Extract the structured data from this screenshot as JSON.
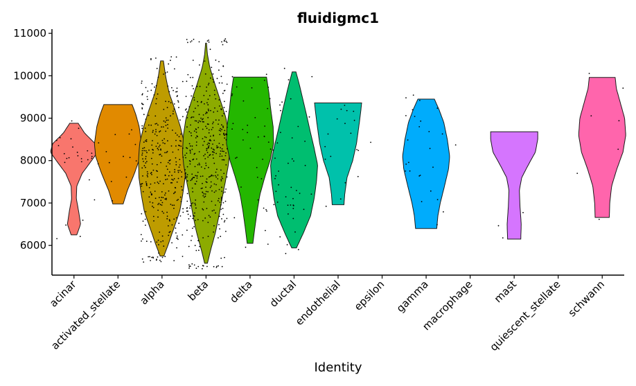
{
  "chart_data": {
    "type": "violin",
    "title": "fluidigmc1",
    "xlabel": "Identity",
    "ylabel": "",
    "ylim": [
      5300,
      11100
    ],
    "yticks": [
      6000,
      7000,
      8000,
      9000,
      10000,
      11000
    ],
    "legend": "none",
    "grid": false,
    "categories": [
      "acinar",
      "activated_stellate",
      "alpha",
      "beta",
      "delta",
      "ductal",
      "endothelial",
      "epsilon",
      "gamma",
      "macrophage",
      "mast",
      "quiescent_stellate",
      "schwann"
    ],
    "colors": [
      "#F8766D",
      "#E18A00",
      "#BE9C00",
      "#8CAB00",
      "#24B700",
      "#00BE70",
      "#00C1AB",
      "#00BBDA",
      "#00ACFC",
      "#8B93FF",
      "#D575FE",
      "#F962DD",
      "#FF65AC"
    ],
    "violins": [
      {
        "category": "acinar",
        "min": 6250,
        "max": 8880,
        "n": 26,
        "profile": [
          [
            6250,
            0.12
          ],
          [
            6500,
            0.28
          ],
          [
            6800,
            0.2
          ],
          [
            7100,
            0.1
          ],
          [
            7400,
            0.12
          ],
          [
            7700,
            0.35
          ],
          [
            8000,
            0.75
          ],
          [
            8200,
            1.0
          ],
          [
            8400,
            0.9
          ],
          [
            8650,
            0.45
          ],
          [
            8880,
            0.18
          ]
        ]
      },
      {
        "category": "activated_stellate",
        "min": 6980,
        "max": 9320,
        "n": 14,
        "profile": [
          [
            6980,
            0.22
          ],
          [
            7300,
            0.4
          ],
          [
            7700,
            0.7
          ],
          [
            8100,
            0.95
          ],
          [
            8400,
            1.0
          ],
          [
            8800,
            0.9
          ],
          [
            9100,
            0.75
          ],
          [
            9320,
            0.6
          ]
        ]
      },
      {
        "category": "alpha",
        "min": 5750,
        "max": 10350,
        "n": 330,
        "profile": [
          [
            5750,
            0.08
          ],
          [
            6000,
            0.25
          ],
          [
            6400,
            0.5
          ],
          [
            6800,
            0.75
          ],
          [
            7200,
            0.88
          ],
          [
            7600,
            0.98
          ],
          [
            8000,
            1.0
          ],
          [
            8400,
            0.95
          ],
          [
            8800,
            0.78
          ],
          [
            9200,
            0.55
          ],
          [
            9600,
            0.3
          ],
          [
            10000,
            0.15
          ],
          [
            10350,
            0.06
          ]
        ]
      },
      {
        "category": "beta",
        "min": 5580,
        "max": 10770,
        "n": 420,
        "profile": [
          [
            5580,
            0.06
          ],
          [
            5900,
            0.2
          ],
          [
            6300,
            0.4
          ],
          [
            6700,
            0.55
          ],
          [
            7100,
            0.68
          ],
          [
            7500,
            0.82
          ],
          [
            7900,
            0.95
          ],
          [
            8200,
            1.0
          ],
          [
            8600,
            0.96
          ],
          [
            9000,
            0.85
          ],
          [
            9400,
            0.62
          ],
          [
            9800,
            0.38
          ],
          [
            10200,
            0.16
          ],
          [
            10500,
            0.06
          ],
          [
            10770,
            0.02
          ]
        ]
      },
      {
        "category": "delta",
        "min": 6050,
        "max": 9970,
        "n": 40,
        "profile": [
          [
            6050,
            0.12
          ],
          [
            6400,
            0.2
          ],
          [
            6800,
            0.3
          ],
          [
            7200,
            0.42
          ],
          [
            7600,
            0.62
          ],
          [
            8000,
            0.85
          ],
          [
            8400,
            1.0
          ],
          [
            8800,
            0.98
          ],
          [
            9200,
            0.88
          ],
          [
            9600,
            0.8
          ],
          [
            9970,
            0.7
          ]
        ]
      },
      {
        "category": "ductal",
        "min": 5940,
        "max": 10090,
        "n": 45,
        "profile": [
          [
            5940,
            0.1
          ],
          [
            6300,
            0.4
          ],
          [
            6700,
            0.7
          ],
          [
            7100,
            0.85
          ],
          [
            7500,
            0.95
          ],
          [
            7900,
            1.0
          ],
          [
            8300,
            0.85
          ],
          [
            8700,
            0.68
          ],
          [
            9100,
            0.52
          ],
          [
            9500,
            0.35
          ],
          [
            9800,
            0.22
          ],
          [
            10090,
            0.08
          ]
        ]
      },
      {
        "category": "endothelial",
        "min": 6960,
        "max": 9360,
        "n": 18,
        "profile": [
          [
            6960,
            0.25
          ],
          [
            7200,
            0.28
          ],
          [
            7600,
            0.38
          ],
          [
            8000,
            0.62
          ],
          [
            8400,
            0.78
          ],
          [
            8800,
            0.88
          ],
          [
            9100,
            0.95
          ],
          [
            9360,
            1.0
          ]
        ]
      },
      {
        "category": "epsilon",
        "min": 8430,
        "max": 8430,
        "n": 1,
        "profile": []
      },
      {
        "category": "gamma",
        "min": 6400,
        "max": 9450,
        "n": 25,
        "profile": [
          [
            6400,
            0.45
          ],
          [
            6700,
            0.5
          ],
          [
            7000,
            0.6
          ],
          [
            7400,
            0.78
          ],
          [
            7800,
            0.95
          ],
          [
            8100,
            1.0
          ],
          [
            8500,
            0.9
          ],
          [
            8900,
            0.75
          ],
          [
            9200,
            0.55
          ],
          [
            9450,
            0.35
          ]
        ]
      },
      {
        "category": "macrophage",
        "min": 8370,
        "max": 8370,
        "n": 1,
        "profile": []
      },
      {
        "category": "mast",
        "min": 6150,
        "max": 8680,
        "n": 3,
        "profile": [
          [
            6150,
            0.28
          ],
          [
            6500,
            0.3
          ],
          [
            6900,
            0.25
          ],
          [
            7300,
            0.22
          ],
          [
            7600,
            0.32
          ],
          [
            7900,
            0.6
          ],
          [
            8200,
            0.9
          ],
          [
            8500,
            1.0
          ],
          [
            8680,
            1.0
          ]
        ]
      },
      {
        "category": "quiescent_stellate",
        "min": 7700,
        "max": 7700,
        "n": 1,
        "profile": []
      },
      {
        "category": "schwann",
        "min": 6660,
        "max": 9960,
        "n": 6,
        "profile": [
          [
            6660,
            0.3
          ],
          [
            7000,
            0.32
          ],
          [
            7400,
            0.4
          ],
          [
            7800,
            0.62
          ],
          [
            8200,
            0.88
          ],
          [
            8600,
            1.0
          ],
          [
            9000,
            0.95
          ],
          [
            9400,
            0.75
          ],
          [
            9700,
            0.6
          ],
          [
            9960,
            0.55
          ]
        ]
      }
    ]
  }
}
